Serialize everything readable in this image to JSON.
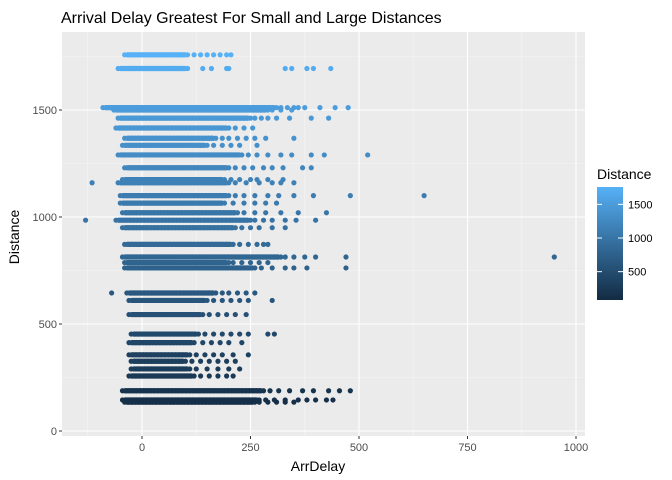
{
  "chart_data": {
    "type": "scatter",
    "title": "Arrival Delay Greatest For Small and Large Distances",
    "xlabel": "ArrDelay",
    "ylabel": "Distance",
    "xlim": [
      -140,
      1000
    ],
    "ylim": [
      0,
      1800
    ],
    "x_ticks": [
      0,
      250,
      500,
      750,
      1000
    ],
    "y_ticks": [
      0,
      500,
      1000,
      1500
    ],
    "grid": true,
    "legend": {
      "title": "Distance",
      "position": "right",
      "ticks": [
        500,
        1000,
        1500
      ],
      "range": [
        79,
        1758
      ],
      "low_color": "#132b43",
      "high_color": "#56b1f7"
    },
    "panel_background": "#ebebeb",
    "distance_bands": [
      {
        "distance": 1758,
        "dense_x": [
          -40,
          105
        ],
        "outliers": [
          120,
          135,
          150,
          165,
          180,
          195,
          205
        ]
      },
      {
        "distance": 1694,
        "dense_x": [
          -55,
          105
        ],
        "outliers": [
          140,
          160,
          195,
          200,
          330,
          345,
          380,
          395,
          435
        ]
      },
      {
        "distance": 1511,
        "dense_x": [
          -90,
          310
        ],
        "outliers": [
          320,
          335,
          350,
          360,
          375,
          410,
          445,
          475
        ]
      },
      {
        "distance": 1500,
        "dense_x": [
          -65,
          290
        ],
        "outliers": [
          300,
          320,
          345
        ]
      },
      {
        "distance": 1462,
        "dense_x": [
          -55,
          250
        ],
        "outliers": [
          260,
          275,
          290,
          310,
          340,
          390,
          430
        ]
      },
      {
        "distance": 1416,
        "dense_x": [
          -60,
          200
        ],
        "outliers": [
          215,
          235,
          255
        ]
      },
      {
        "distance": 1368,
        "dense_x": [
          -40,
          170
        ],
        "outliers": [
          185,
          200,
          220,
          240,
          260,
          285,
          350
        ]
      },
      {
        "distance": 1335,
        "dense_x": [
          -45,
          150
        ],
        "outliers": [
          165,
          185,
          205,
          225,
          265
        ]
      },
      {
        "distance": 1290,
        "dense_x": [
          -55,
          230
        ],
        "outliers": [
          245,
          265,
          290,
          320,
          345,
          390,
          420,
          520
        ]
      },
      {
        "distance": 1230,
        "dense_x": [
          -40,
          200
        ],
        "outliers": [
          215,
          235,
          255,
          280,
          300,
          325,
          370,
          390
        ]
      },
      {
        "distance": 1175,
        "dense_x": [
          -45,
          190
        ],
        "outliers": [
          205,
          225,
          250,
          265,
          290,
          325
        ]
      },
      {
        "distance": 1160,
        "dense_x": [
          -55,
          200
        ],
        "outliers": [
          -115,
          215,
          240,
          270,
          300,
          320,
          350
        ]
      },
      {
        "distance": 1100,
        "dense_x": [
          -50,
          200
        ],
        "outliers": [
          215,
          235,
          260,
          290,
          315,
          350,
          395,
          480,
          650
        ]
      },
      {
        "distance": 1065,
        "dense_x": [
          -50,
          190
        ],
        "outliers": [
          210,
          235,
          260,
          285,
          310
        ]
      },
      {
        "distance": 1020,
        "dense_x": [
          -45,
          220
        ],
        "outliers": [
          235,
          260,
          285,
          320,
          360,
          425
        ]
      },
      {
        "distance": 985,
        "dense_x": [
          -60,
          250
        ],
        "outliers": [
          -130,
          260,
          280,
          300,
          330,
          355,
          400
        ]
      },
      {
        "distance": 950,
        "dense_x": [
          -45,
          215
        ],
        "outliers": [
          230,
          250,
          270,
          300,
          330
        ]
      },
      {
        "distance": 872,
        "dense_x": [
          -40,
          210
        ],
        "outliers": [
          225,
          245,
          265,
          280,
          290
        ]
      },
      {
        "distance": 813,
        "dense_x": [
          -45,
          320
        ],
        "outliers": [
          330,
          350,
          375,
          400,
          470,
          950
        ]
      },
      {
        "distance": 787,
        "dense_x": [
          -40,
          200
        ],
        "outliers": [
          210,
          230,
          250,
          270,
          290
        ]
      },
      {
        "distance": 762,
        "dense_x": [
          -40,
          260
        ],
        "outliers": [
          275,
          300,
          330,
          350,
          380,
          470
        ]
      },
      {
        "distance": 645,
        "dense_x": [
          -35,
          170
        ],
        "outliers": [
          185,
          200,
          220,
          240,
          260,
          -70
        ]
      },
      {
        "distance": 610,
        "dense_x": [
          -30,
          150
        ],
        "outliers": [
          165,
          185,
          205,
          225,
          245,
          300
        ]
      },
      {
        "distance": 544,
        "dense_x": [
          -30,
          140
        ],
        "outliers": [
          155,
          175,
          195,
          215,
          240
        ]
      },
      {
        "distance": 453,
        "dense_x": [
          -25,
          130
        ],
        "outliers": [
          145,
          165,
          185,
          205,
          225,
          245,
          290,
          305
        ]
      },
      {
        "distance": 413,
        "dense_x": [
          -30,
          120
        ],
        "outliers": [
          140,
          160,
          180,
          200,
          230
        ]
      },
      {
        "distance": 356,
        "dense_x": [
          -30,
          110
        ],
        "outliers": [
          125,
          145,
          165,
          185,
          210,
          245
        ]
      },
      {
        "distance": 326,
        "dense_x": [
          -25,
          100
        ],
        "outliers": [
          115,
          135,
          155,
          175,
          195,
          215
        ]
      },
      {
        "distance": 290,
        "dense_x": [
          -25,
          110
        ],
        "outliers": [
          125,
          150,
          175,
          200,
          225
        ]
      },
      {
        "distance": 257,
        "dense_x": [
          -30,
          120
        ],
        "outliers": [
          135,
          155,
          175,
          195,
          210
        ]
      },
      {
        "distance": 188,
        "dense_x": [
          -45,
          280
        ],
        "outliers": [
          295,
          315,
          340,
          370,
          395,
          430,
          455,
          480
        ]
      },
      {
        "distance": 145,
        "dense_x": [
          -45,
          270
        ],
        "outliers": [
          285,
          305,
          330,
          360,
          380,
          400,
          425,
          440
        ]
      },
      {
        "distance": 135,
        "dense_x": [
          -40,
          260
        ],
        "outliers": [
          270,
          290,
          310,
          330,
          350
        ]
      }
    ]
  }
}
